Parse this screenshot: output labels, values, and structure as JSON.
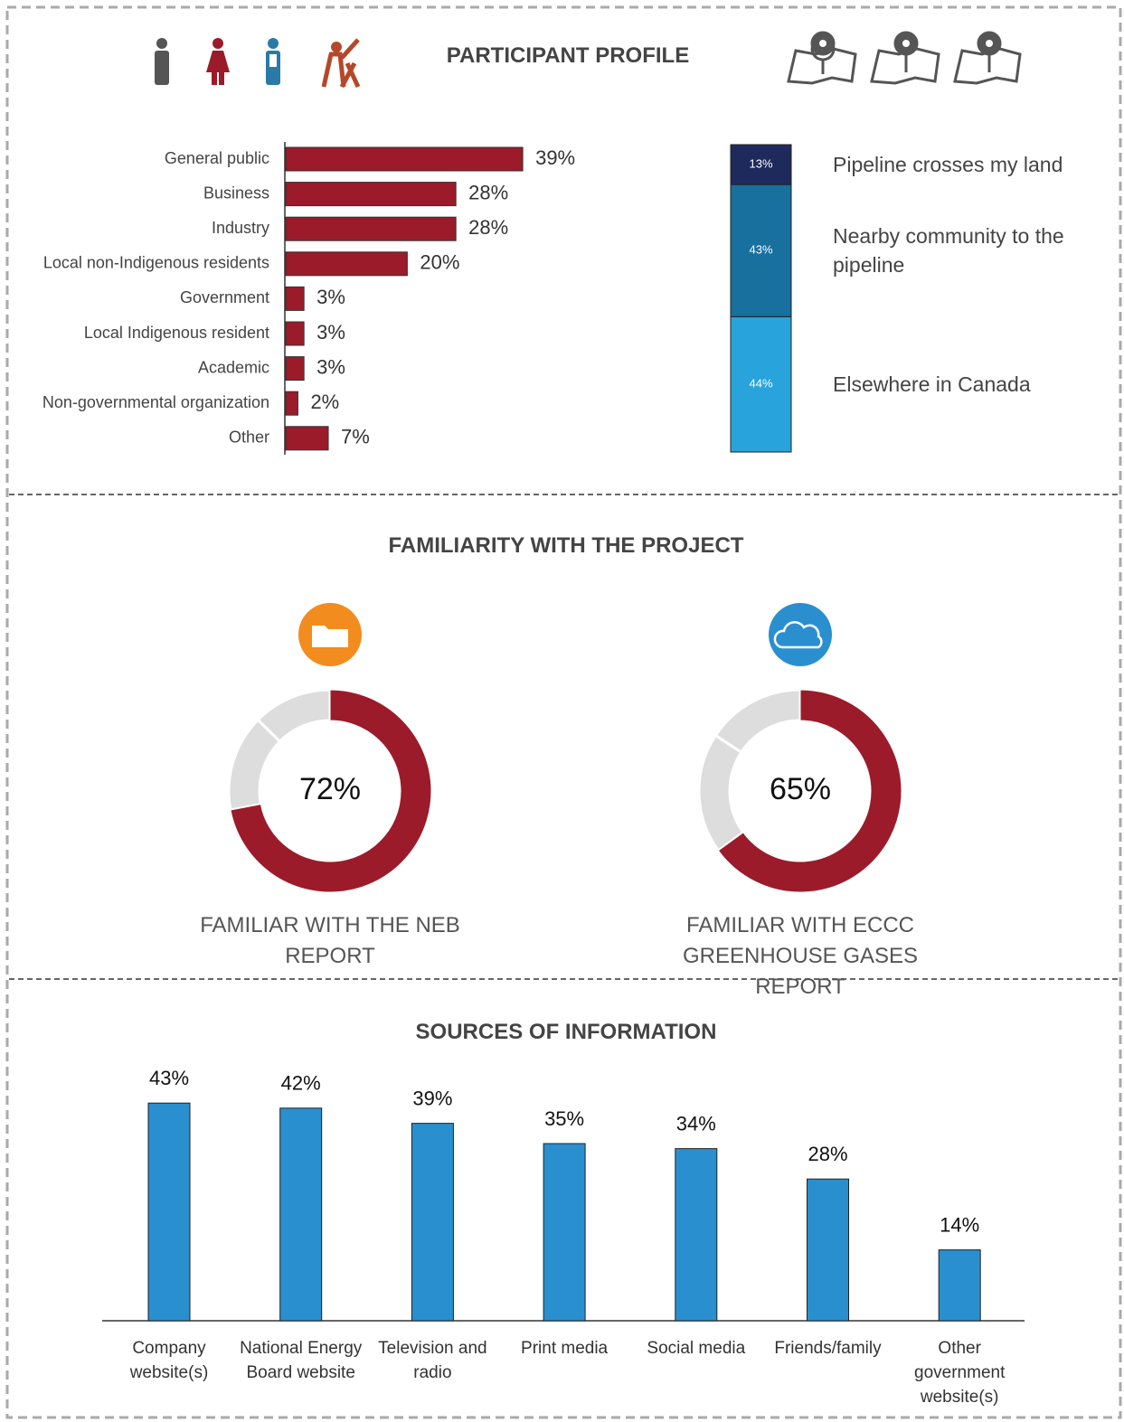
{
  "chart_data": [
    {
      "type": "hbar",
      "title": "PARTICIPANT PROFILE",
      "categories": [
        "General public",
        "Business",
        "Industry",
        "Local non-Indigenous residents",
        "Government",
        "Local Indigenous resident",
        "Academic",
        "Non-governmental organization",
        "Other"
      ],
      "values": [
        39,
        28,
        28,
        20,
        3,
        3,
        3,
        2,
        7
      ],
      "value_labels": [
        "39%",
        "28%",
        "28%",
        "20%",
        "3%",
        "3%",
        "3%",
        "2%",
        "7%"
      ],
      "color": "#9b1b2a"
    },
    {
      "type": "stacked",
      "categories": [
        "Pipeline crosses my land",
        "Nearby community to the pipeline",
        "Elsewhere in Canada"
      ],
      "values": [
        13,
        43,
        44
      ],
      "value_labels": [
        "13%",
        "43%",
        "44%"
      ],
      "colors": [
        "#1f2a5c",
        "#17709e",
        "#29a3dc"
      ]
    },
    {
      "type": "donut",
      "title": "FAMILIARITY WITH THE PROJECT",
      "label": "FAMILIAR WITH THE NEB REPORT",
      "value": 72,
      "value_label": "72%",
      "color": "#9b1b2a",
      "icon_color": "#f28c1e"
    },
    {
      "type": "donut",
      "label": "FAMILIAR WITH ECCC GREENHOUSE GASES REPORT",
      "value": 65,
      "value_label": "65%",
      "color": "#9b1b2a",
      "icon_color": "#2a8fcf"
    },
    {
      "type": "bar",
      "title": "SOURCES OF INFORMATION",
      "categories": [
        "Company website(s)",
        "National Energy Board website",
        "Television and radio",
        "Print media",
        "Social media",
        "Friends/family",
        "Other government website(s)"
      ],
      "values": [
        43,
        42,
        39,
        35,
        34,
        28,
        14
      ],
      "value_labels": [
        "43%",
        "42%",
        "39%",
        "35%",
        "34%",
        "28%",
        "14%"
      ],
      "color": "#2a8fcf"
    }
  ]
}
